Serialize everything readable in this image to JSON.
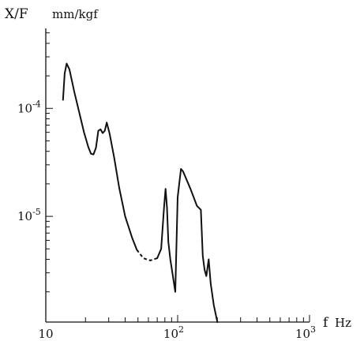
{
  "chart_data": {
    "type": "line",
    "title": "",
    "ylabel": "X/F",
    "ylabel_unit": "mm/kgf",
    "xlabel": "f",
    "xlabel_unit": "Hz",
    "x_scale": "log",
    "y_scale": "log",
    "xlim": [
      10,
      1000
    ],
    "ylim": [
      1.05e-06,
      0.00055
    ],
    "grid": false,
    "x_tick_labels": [
      {
        "value": 10,
        "base": "10",
        "exp": ""
      },
      {
        "value": 100,
        "base": "10",
        "exp": "2"
      },
      {
        "value": 1000,
        "base": "10",
        "exp": "3"
      }
    ],
    "y_tick_labels": [
      {
        "value": 0.0001,
        "base": "10",
        "exp": "-4"
      },
      {
        "value": 1e-05,
        "base": "10",
        "exp": "-5"
      }
    ],
    "series": [
      {
        "style": "solid",
        "points": [
          [
            13.5,
            0.00012
          ],
          [
            13.9,
            0.00021
          ],
          [
            14.4,
            0.00026
          ],
          [
            15.1,
            0.00023
          ],
          [
            16.5,
            0.00014
          ],
          [
            18.0,
            9e-05
          ],
          [
            19.5,
            6e-05
          ],
          [
            21.0,
            4.4e-05
          ],
          [
            22.0,
            3.8e-05
          ],
          [
            23.0,
            3.75e-05
          ],
          [
            24.0,
            4.3e-05
          ],
          [
            25.0,
            6.2e-05
          ],
          [
            26.0,
            6.4e-05
          ],
          [
            27.0,
            5.9e-05
          ],
          [
            28.0,
            6.2e-05
          ],
          [
            29.0,
            7.4e-05
          ],
          [
            30.5,
            5.8e-05
          ],
          [
            33.0,
            3.5e-05
          ],
          [
            36.0,
            1.85e-05
          ],
          [
            40.0,
            1e-05
          ],
          [
            45.0,
            6.4e-06
          ],
          [
            49.0,
            4.9e-06
          ]
        ]
      },
      {
        "style": "dashed",
        "points": [
          [
            49.0,
            4.9e-06
          ],
          [
            55.0,
            4.1e-06
          ],
          [
            62.0,
            3.9e-06
          ],
          [
            70.0,
            4.1e-06
          ]
        ]
      },
      {
        "style": "solid",
        "points": [
          [
            70.0,
            4.1e-06
          ],
          [
            75.0,
            5e-06
          ],
          [
            79.0,
            1.25e-05
          ],
          [
            81.0,
            1.8e-05
          ],
          [
            83.0,
            1.2e-05
          ],
          [
            85.0,
            5.8e-06
          ],
          [
            88.0,
            4e-06
          ],
          [
            96.0,
            2e-06
          ],
          [
            100.0,
            1.5e-05
          ],
          [
            106.0,
            2.75e-05
          ],
          [
            110.0,
            2.6e-05
          ],
          [
            125.0,
            1.8e-05
          ],
          [
            140.0,
            1.25e-05
          ],
          [
            150.0,
            1.15e-05
          ],
          [
            155.0,
            4.3e-06
          ],
          [
            160.0,
            3.2e-06
          ],
          [
            165.0,
            2.8e-06
          ],
          [
            172.0,
            4e-06
          ],
          [
            178.0,
            2.4e-06
          ],
          [
            188.0,
            1.5e-06
          ],
          [
            200.0,
            1.05e-06
          ]
        ]
      }
    ]
  }
}
